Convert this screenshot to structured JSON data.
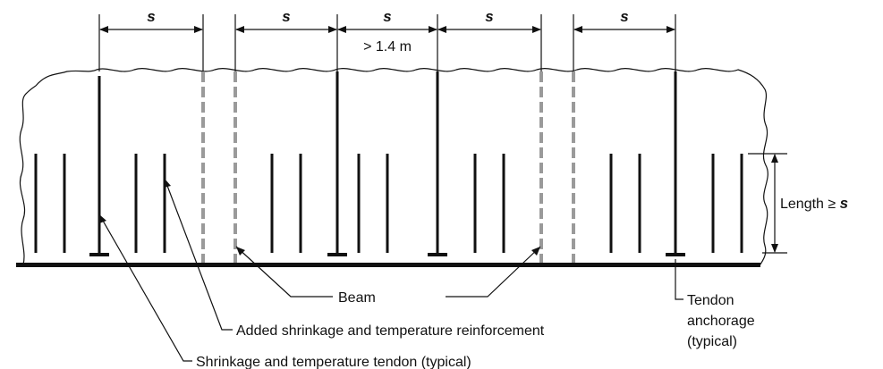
{
  "dimensions": {
    "spacing_symbol": "s",
    "center_note": "> 1.4 m",
    "length_prefix": "Length ≥ ",
    "length_symbol": "s"
  },
  "callouts": {
    "beam": "Beam",
    "tendon_anchorage": [
      "Tendon",
      "anchorage",
      "(typical)"
    ],
    "added_reinforcement": "Added shrinkage and temperature reinforcement",
    "tendon_typical": "Shrinkage and temperature tendon (typical)"
  },
  "colors": {
    "line": "#111111",
    "beam_dashed": "#9a9a9a"
  }
}
